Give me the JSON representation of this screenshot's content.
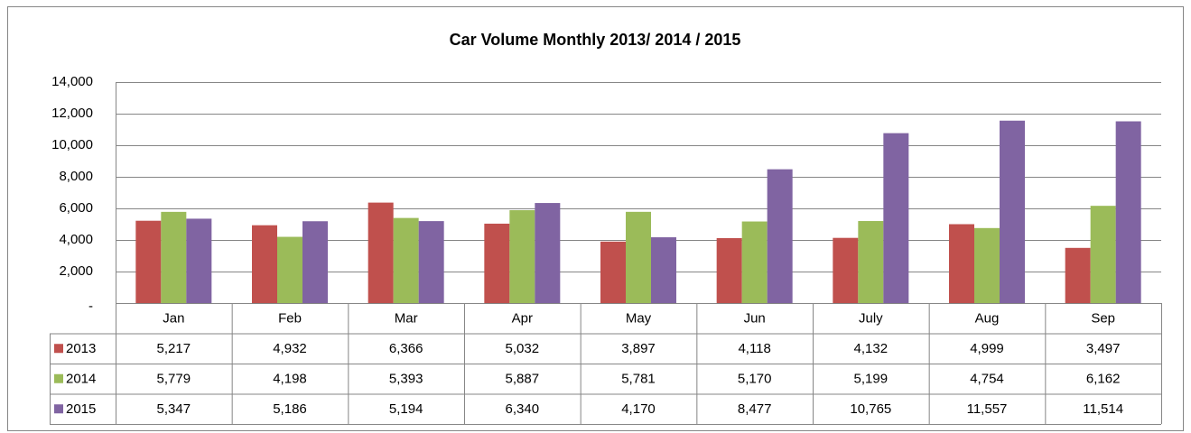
{
  "chart_data": {
    "type": "bar",
    "title": "Car Volume Monthly 2013/ 2014 / 2015",
    "categories": [
      "Jan",
      "Feb",
      "Mar",
      "Apr",
      "May",
      "Jun",
      "July",
      "Aug",
      "Sep"
    ],
    "series": [
      {
        "name": "2013",
        "color": "#c0504d",
        "values": [
          5217,
          4932,
          6366,
          5032,
          3897,
          4118,
          4132,
          4999,
          3497
        ],
        "value_labels": [
          "5,217",
          "4,932",
          "6,366",
          "5,032",
          "3,897",
          "4,118",
          "4,132",
          "4,999",
          "3,497"
        ]
      },
      {
        "name": "2014",
        "color": "#9bbb59",
        "values": [
          5779,
          4198,
          5393,
          5887,
          5781,
          5170,
          5199,
          4754,
          6162
        ],
        "value_labels": [
          "5,779",
          "4,198",
          "5,393",
          "5,887",
          "5,781",
          "5,170",
          "5,199",
          "4,754",
          "6,162"
        ]
      },
      {
        "name": "2015",
        "color": "#8064a2",
        "values": [
          5347,
          5186,
          5194,
          6340,
          4170,
          8477,
          10765,
          11557,
          11514
        ],
        "value_labels": [
          "5,347",
          "5,186",
          "5,194",
          "6,340",
          "4,170",
          "8,477",
          "10,765",
          "11,557",
          "11,514"
        ]
      }
    ],
    "ylim": [
      0,
      14000
    ],
    "yticks": [
      {
        "value": 0,
        "label": "-"
      },
      {
        "value": 2000,
        "label": "2,000"
      },
      {
        "value": 4000,
        "label": "4,000"
      },
      {
        "value": 6000,
        "label": "6,000"
      },
      {
        "value": 8000,
        "label": "8,000"
      },
      {
        "value": 10000,
        "label": "10,000"
      },
      {
        "value": 12000,
        "label": "12,000"
      },
      {
        "value": 14000,
        "label": "14,000"
      }
    ],
    "grid": true
  }
}
